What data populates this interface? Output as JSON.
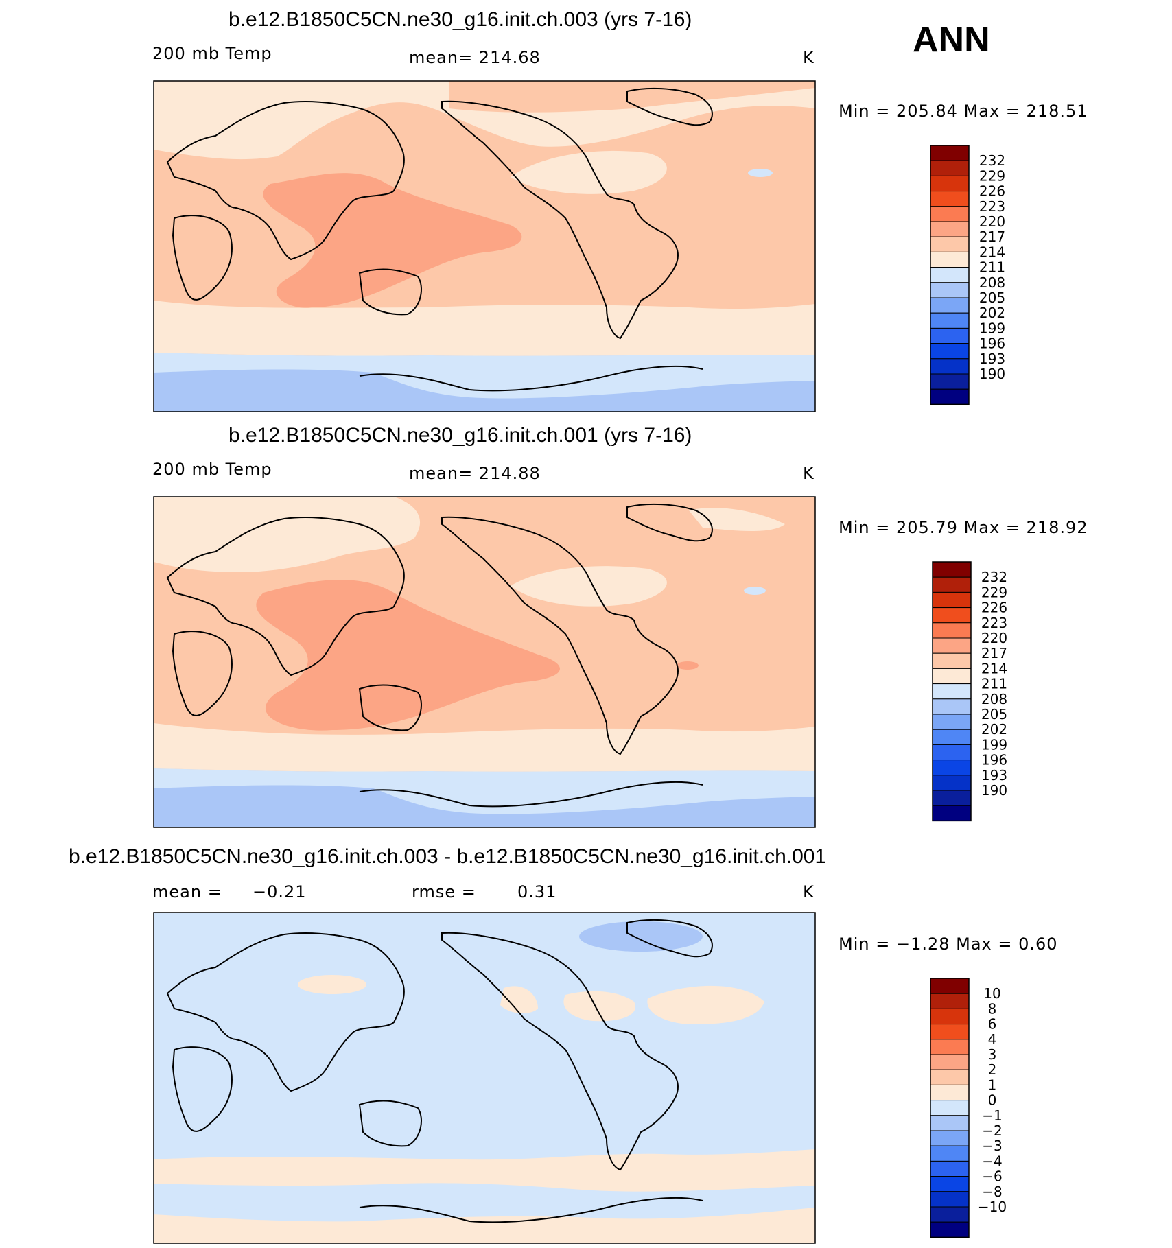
{
  "season": "ANN",
  "colors": {
    "temp_scale": [
      "#000080",
      "#0a1f9c",
      "#0532c8",
      "#0a45e5",
      "#2c63f0",
      "#4f86f5",
      "#7ba6f6",
      "#aac6f7",
      "#d3e6fb",
      "#fde9d6",
      "#fdc8a9",
      "#fca585",
      "#fb7b52",
      "#f04e1d",
      "#d7340c",
      "#b0200a",
      "#800000"
    ],
    "diff_scale": [
      "#000080",
      "#0a1f9c",
      "#0532c8",
      "#0a45e5",
      "#2c63f0",
      "#4f86f5",
      "#7ba6f6",
      "#aac6f7",
      "#d3e6fb",
      "#fde9d6",
      "#fdc8a9",
      "#fca585",
      "#fb7b52",
      "#f04e1d",
      "#d7340c",
      "#b0200a",
      "#800000"
    ],
    "coast": "#000000"
  },
  "chart_data": [
    {
      "type": "heatmap",
      "id": "panel1",
      "title": "b.e12.B1850C5CN.ne30_g16.init.ch.003 (yrs 7-16)",
      "variable": "200 mb Temp",
      "mean_text": "mean=  214.68",
      "units": "K",
      "min_max_text": "Min  =  205.84  Max  =  218.51",
      "min": 205.84,
      "max": 218.51,
      "mean": 214.68,
      "levels": [
        190,
        193,
        196,
        199,
        202,
        205,
        208,
        211,
        214,
        217,
        220,
        223,
        226,
        229,
        232
      ],
      "level_labels": [
        "232",
        "229",
        "226",
        "223",
        "220",
        "217",
        "214",
        "211",
        "208",
        "205",
        "202",
        "199",
        "196",
        "193",
        "190"
      ]
    },
    {
      "type": "heatmap",
      "id": "panel2",
      "title": "b.e12.B1850C5CN.ne30_g16.init.ch.001 (yrs 7-16)",
      "variable": "200 mb Temp",
      "mean_text": "mean=  214.88",
      "units": "K",
      "min_max_text": "Min  =  205.79  Max  =  218.92",
      "min": 205.79,
      "max": 218.92,
      "mean": 214.88,
      "levels": [
        190,
        193,
        196,
        199,
        202,
        205,
        208,
        211,
        214,
        217,
        220,
        223,
        226,
        229,
        232
      ],
      "level_labels": [
        "232",
        "229",
        "226",
        "223",
        "220",
        "217",
        "214",
        "211",
        "208",
        "205",
        "202",
        "199",
        "196",
        "193",
        "190"
      ]
    },
    {
      "type": "heatmap",
      "id": "panel3",
      "title": "b.e12.B1850C5CN.ne30_g16.init.ch.003 - b.e12.B1850C5CN.ne30_g16.init.ch.001",
      "mean_label": "mean  =",
      "mean_value": "−0.21",
      "rmse_label": "rmse  =",
      "rmse_value": "0.31",
      "units": "K",
      "min_max_text": "Min  =    −1.28  Max  =     0.60",
      "min": -1.28,
      "max": 0.6,
      "mean": -0.21,
      "rmse": 0.31,
      "levels": [
        -10,
        -8,
        -6,
        -4,
        -3,
        -2,
        -1,
        0,
        1,
        2,
        3,
        4,
        6,
        8,
        10
      ],
      "level_labels": [
        "10",
        "8",
        "6",
        "4",
        "3",
        "2",
        "1",
        "0",
        "−1",
        "−2",
        "−3",
        "−4",
        "−6",
        "−8",
        "−10"
      ]
    }
  ]
}
